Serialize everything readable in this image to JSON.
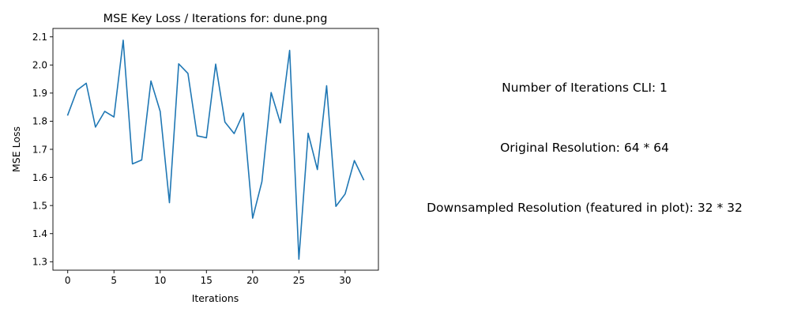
{
  "chart_data": {
    "type": "line",
    "title": "MSE Key Loss / Iterations for: dune.png",
    "xlabel": "Iterations",
    "ylabel": "MSE Loss",
    "xlim": [
      -1.6,
      33.6
    ],
    "ylim": [
      1.27,
      2.13
    ],
    "xticks": [
      0,
      5,
      10,
      15,
      20,
      25,
      30
    ],
    "yticks": [
      1.3,
      1.4,
      1.5,
      1.6,
      1.7,
      1.8,
      1.9,
      2.0,
      2.1
    ],
    "xtick_labels": [
      "0",
      "5",
      "10",
      "15",
      "20",
      "25",
      "30"
    ],
    "ytick_labels": [
      "1.3",
      "1.4",
      "1.5",
      "1.6",
      "1.7",
      "1.8",
      "1.9",
      "2.0",
      "2.1"
    ],
    "grid": false,
    "color": "#1f77b4",
    "x": [
      0,
      1,
      2,
      3,
      4,
      5,
      6,
      7,
      8,
      9,
      10,
      11,
      12,
      13,
      14,
      15,
      16,
      17,
      18,
      19,
      20,
      21,
      22,
      23,
      24,
      25,
      26,
      27,
      28,
      29,
      30,
      31,
      32
    ],
    "values": [
      1.822,
      1.91,
      1.935,
      1.779,
      1.835,
      1.815,
      2.088,
      1.648,
      1.662,
      1.943,
      1.835,
      1.51,
      2.004,
      1.97,
      1.748,
      1.741,
      2.003,
      1.797,
      1.756,
      1.829,
      1.455,
      1.585,
      1.902,
      1.794,
      2.052,
      1.309,
      1.757,
      1.628,
      1.926,
      1.497,
      1.541,
      1.66,
      1.592
    ]
  },
  "info": {
    "iterations_cli": "Number of Iterations CLI: 1",
    "original_resolution": "Original Resolution: 64 * 64",
    "downsampled_resolution": "Downsampled Resolution (featured in plot): 32 * 32"
  }
}
